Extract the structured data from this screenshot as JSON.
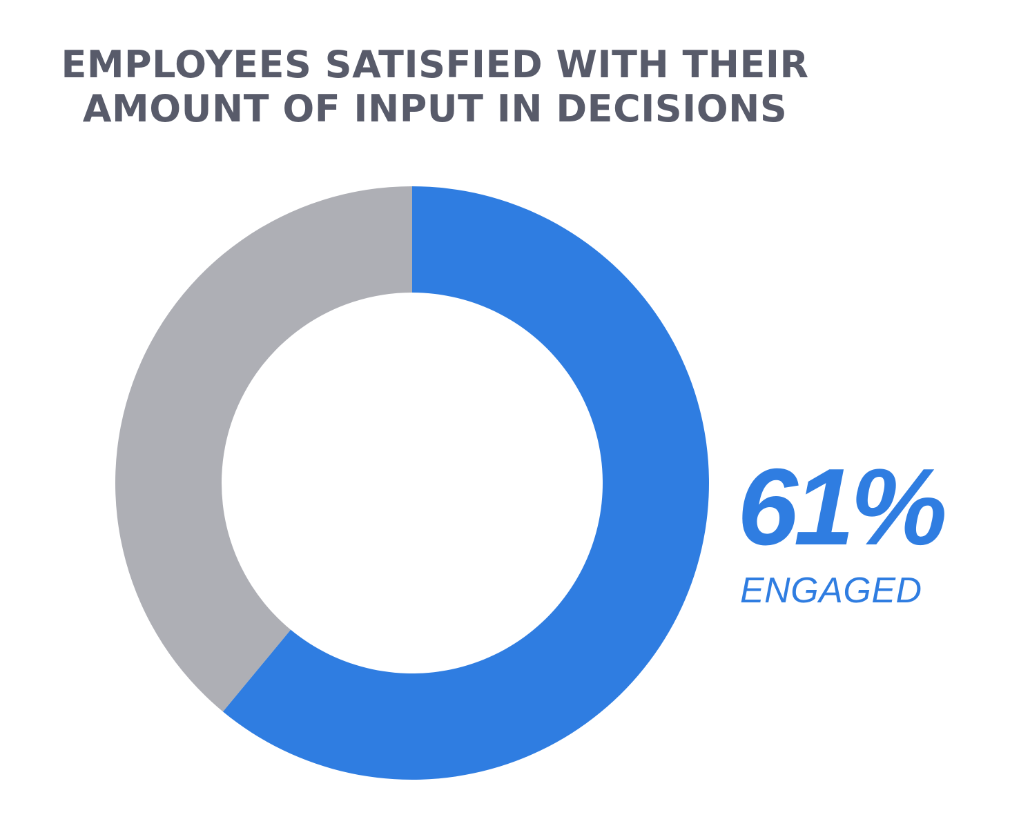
{
  "chart_data": {
    "type": "pie",
    "title_lines": [
      "EMPLOYEES SATISFIED WITH THEIR",
      "AMOUNT OF INPUT IN DECISIONS"
    ],
    "slices": [
      {
        "label": "ENGAGED",
        "value": 61,
        "color": "#2f7de1"
      },
      {
        "label": "",
        "value": 39,
        "color": "#aeafb5"
      }
    ],
    "value_label": "61%",
    "caption": "ENGAGED",
    "donut": true
  },
  "colors": {
    "title": "#585b6a",
    "accent": "#2f7de1",
    "remainder": "#aeafb5"
  }
}
